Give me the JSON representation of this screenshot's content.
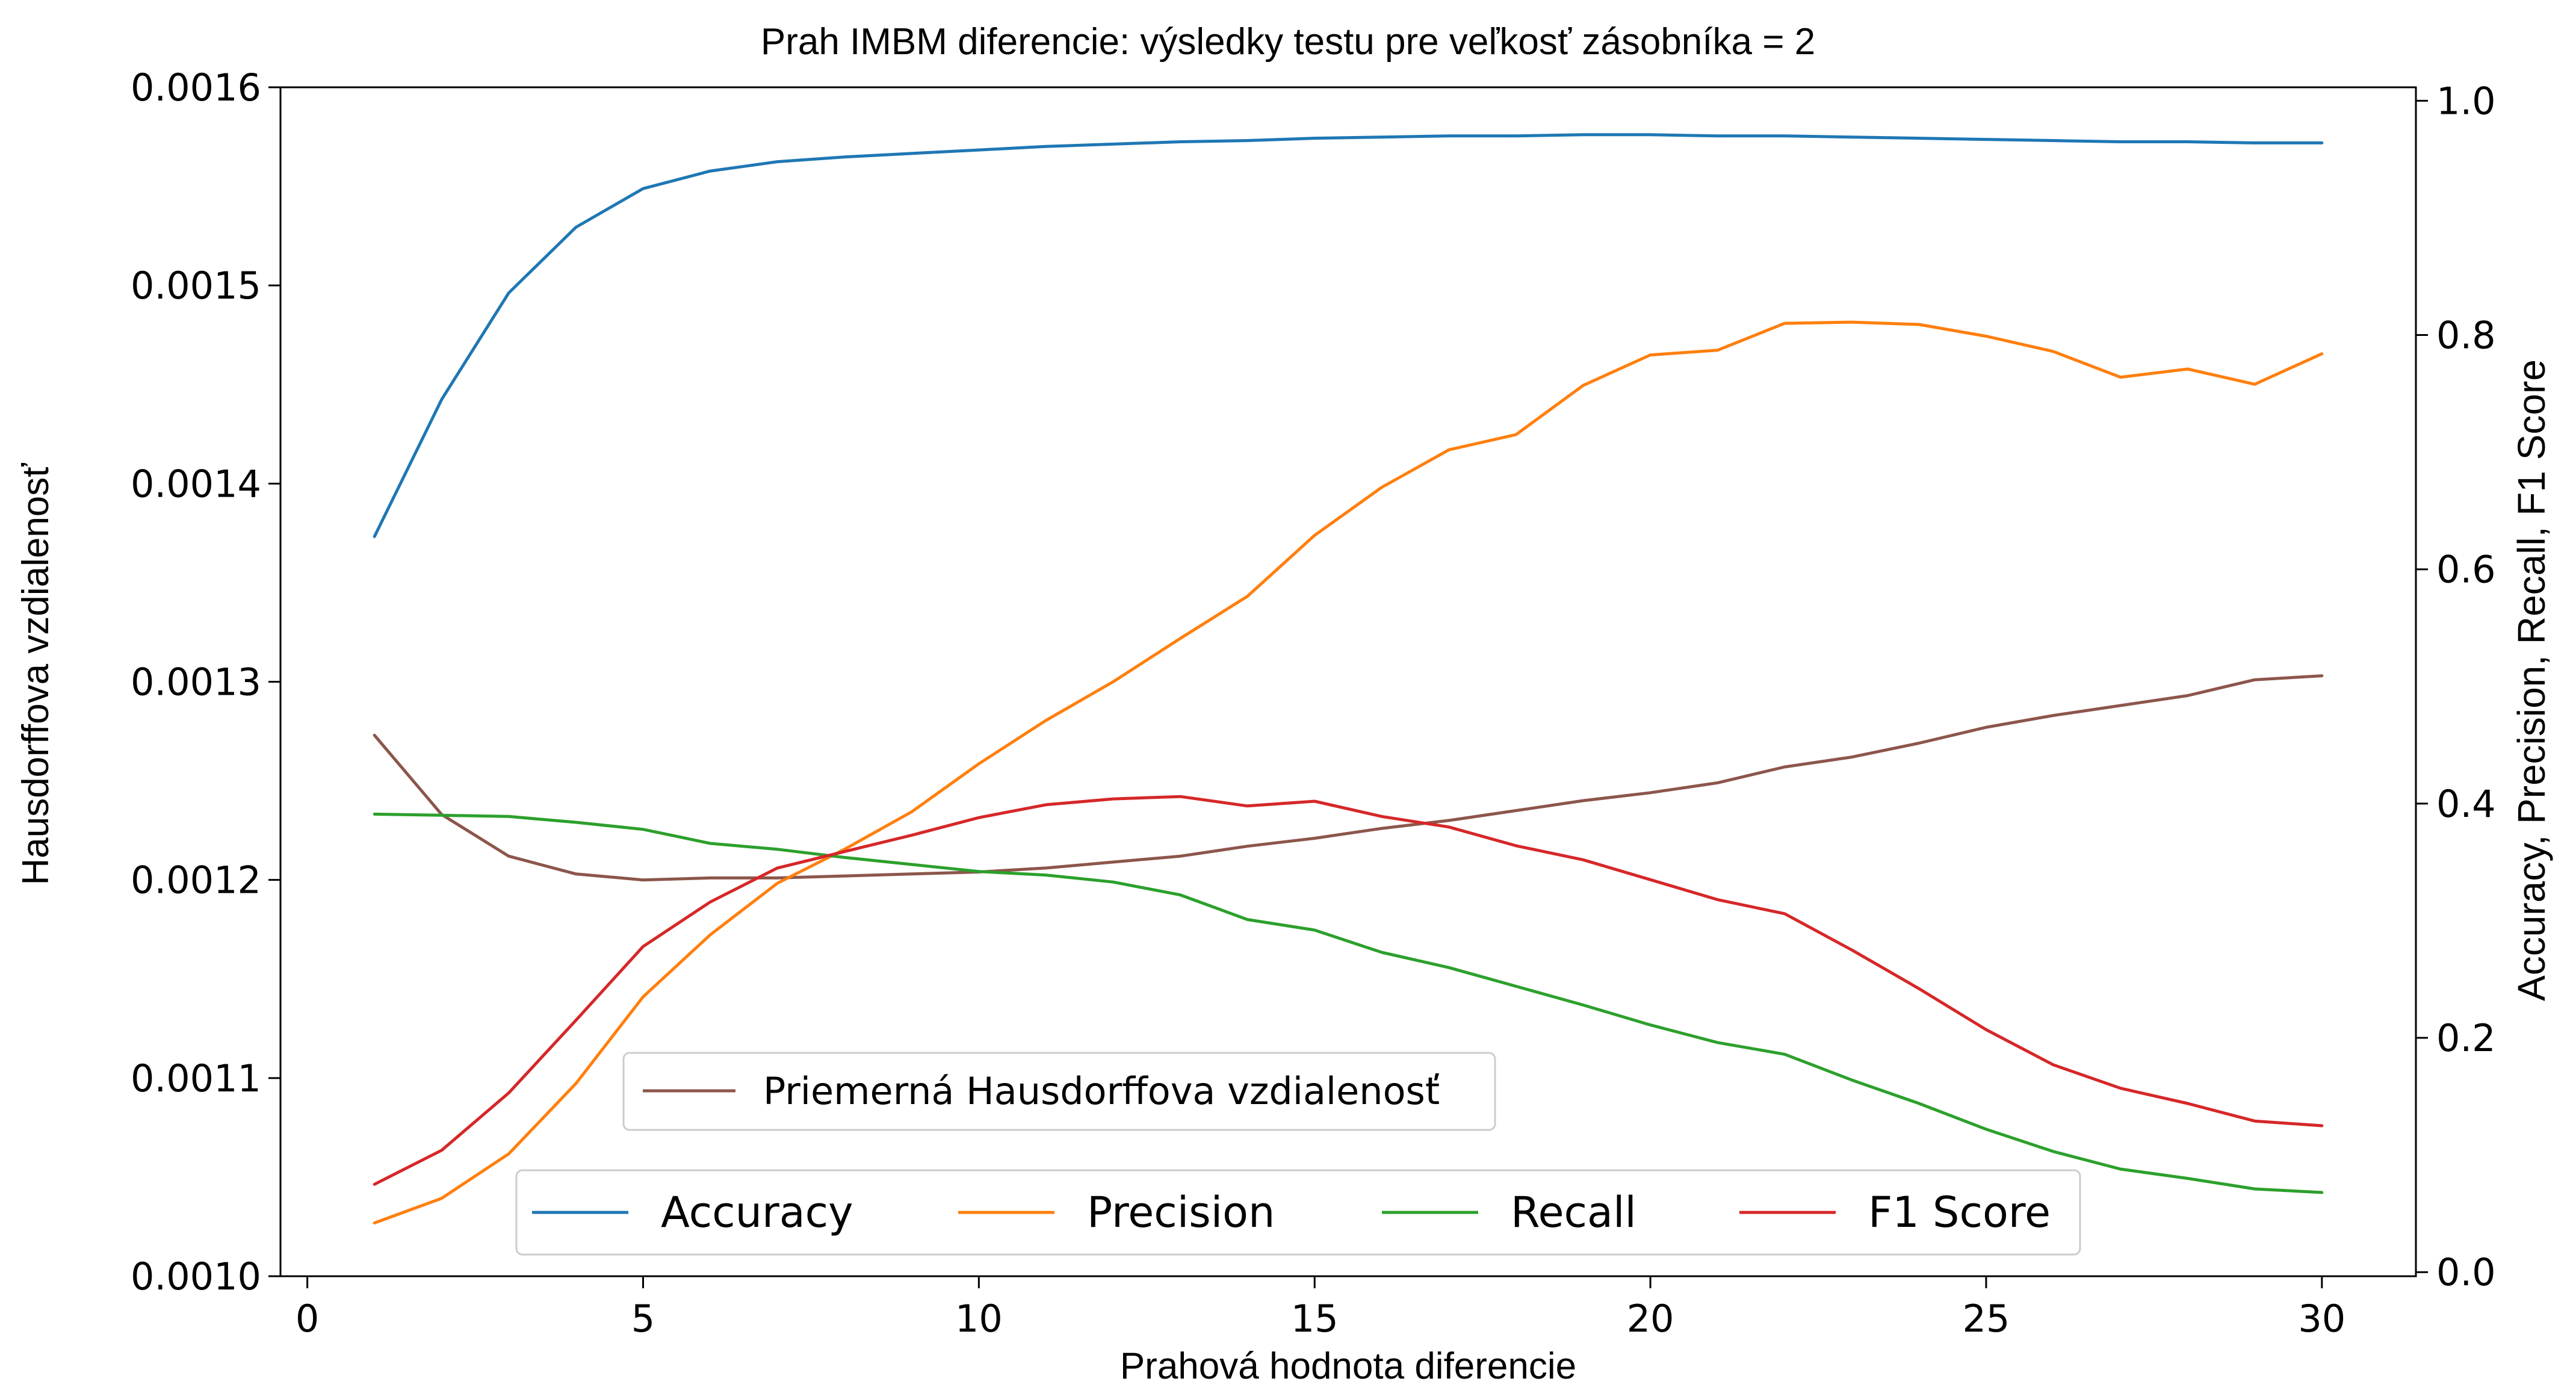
{
  "chart_data": {
    "type": "line",
    "title": "Prah IMBM diferencie: výsledky testu pre veľkosť zásobníka = 2",
    "xlabel": "Prahová hodnota diferencie",
    "ylabel": "Hausdorffova vzdialenosť",
    "y2label": "Accuracy,  Precision,  Recall,  F1 Score",
    "xlim": [
      -0.4,
      31.4
    ],
    "ylim": [
      0.001,
      0.0016
    ],
    "y2lim": [
      -0.0035,
      1.0115
    ],
    "xticks": [
      0,
      5,
      10,
      15,
      20,
      25,
      30
    ],
    "xtick_labels": [
      "0",
      "5",
      "10",
      "15",
      "20",
      "25",
      "30"
    ],
    "yticks": [
      0.001,
      0.0011,
      0.0012,
      0.0013,
      0.0014,
      0.0015,
      0.0016
    ],
    "ytick_labels": [
      "0.0010",
      "0.0011",
      "0.0012",
      "0.0013",
      "0.0014",
      "0.0015",
      "0.0016"
    ],
    "y2ticks": [
      0.0,
      0.2,
      0.4,
      0.6,
      0.8,
      1.0
    ],
    "y2tick_labels": [
      "0.0",
      "0.2",
      "0.4",
      "0.6",
      "0.8",
      "1.0"
    ],
    "grid": false,
    "x": [
      1,
      2,
      3,
      4,
      5,
      6,
      7,
      8,
      9,
      10,
      11,
      12,
      13,
      14,
      15,
      16,
      17,
      18,
      19,
      20,
      21,
      22,
      23,
      24,
      25,
      26,
      27,
      28,
      29,
      30
    ],
    "series": [
      {
        "name": "Priemerná Hausdorffova vzdialenosť",
        "axis": "left",
        "color": "#8c564b",
        "values": [
          0.001273,
          0.001233,
          0.001212,
          0.001203,
          0.0012,
          0.001201,
          0.001201,
          0.001202,
          0.001203,
          0.001204,
          0.001206,
          0.001209,
          0.001212,
          0.001217,
          0.001221,
          0.001226,
          0.00123,
          0.001235,
          0.00124,
          0.001244,
          0.001249,
          0.001257,
          0.001262,
          0.001269,
          0.001277,
          0.001283,
          0.001288,
          0.001293,
          0.001301,
          0.001303
        ]
      },
      {
        "name": "Accuracy",
        "axis": "right",
        "color": "#1f77b4",
        "values": [
          0.628,
          0.745,
          0.836,
          0.892,
          0.925,
          0.94,
          0.948,
          0.952,
          0.955,
          0.958,
          0.961,
          0.963,
          0.965,
          0.966,
          0.968,
          0.969,
          0.97,
          0.97,
          0.971,
          0.971,
          0.97,
          0.97,
          0.969,
          0.968,
          0.967,
          0.966,
          0.965,
          0.965,
          0.964,
          0.964
        ]
      },
      {
        "name": "Precision",
        "axis": "right",
        "color": "#ff7f0e",
        "values": [
          0.042,
          0.063,
          0.101,
          0.161,
          0.235,
          0.288,
          0.332,
          0.361,
          0.393,
          0.434,
          0.471,
          0.504,
          0.541,
          0.577,
          0.629,
          0.67,
          0.702,
          0.715,
          0.757,
          0.783,
          0.787,
          0.81,
          0.811,
          0.809,
          0.799,
          0.786,
          0.764,
          0.771,
          0.758,
          0.784
        ]
      },
      {
        "name": "Recall",
        "axis": "right",
        "color": "#2ca02c",
        "values": [
          0.391,
          0.39,
          0.389,
          0.384,
          0.378,
          0.366,
          0.361,
          0.354,
          0.348,
          0.342,
          0.339,
          0.333,
          0.322,
          0.301,
          0.292,
          0.273,
          0.26,
          0.244,
          0.228,
          0.211,
          0.196,
          0.186,
          0.164,
          0.144,
          0.122,
          0.103,
          0.088,
          0.08,
          0.071,
          0.068
        ]
      },
      {
        "name": "F1 Score",
        "axis": "right",
        "color": "#d62728",
        "values": [
          0.075,
          0.104,
          0.153,
          0.215,
          0.278,
          0.316,
          0.345,
          0.359,
          0.373,
          0.388,
          0.399,
          0.404,
          0.406,
          0.398,
          0.402,
          0.389,
          0.38,
          0.364,
          0.352,
          0.335,
          0.318,
          0.306,
          0.275,
          0.242,
          0.207,
          0.177,
          0.157,
          0.144,
          0.129,
          0.125
        ]
      }
    ],
    "legends": [
      {
        "placement": "lower-center",
        "entries": [
          "Priemerná Hausdorffova vzdialenosť"
        ]
      },
      {
        "placement": "lower-center",
        "entries": [
          "Accuracy",
          "Precision",
          "Recall",
          "F1 Score"
        ]
      }
    ]
  }
}
